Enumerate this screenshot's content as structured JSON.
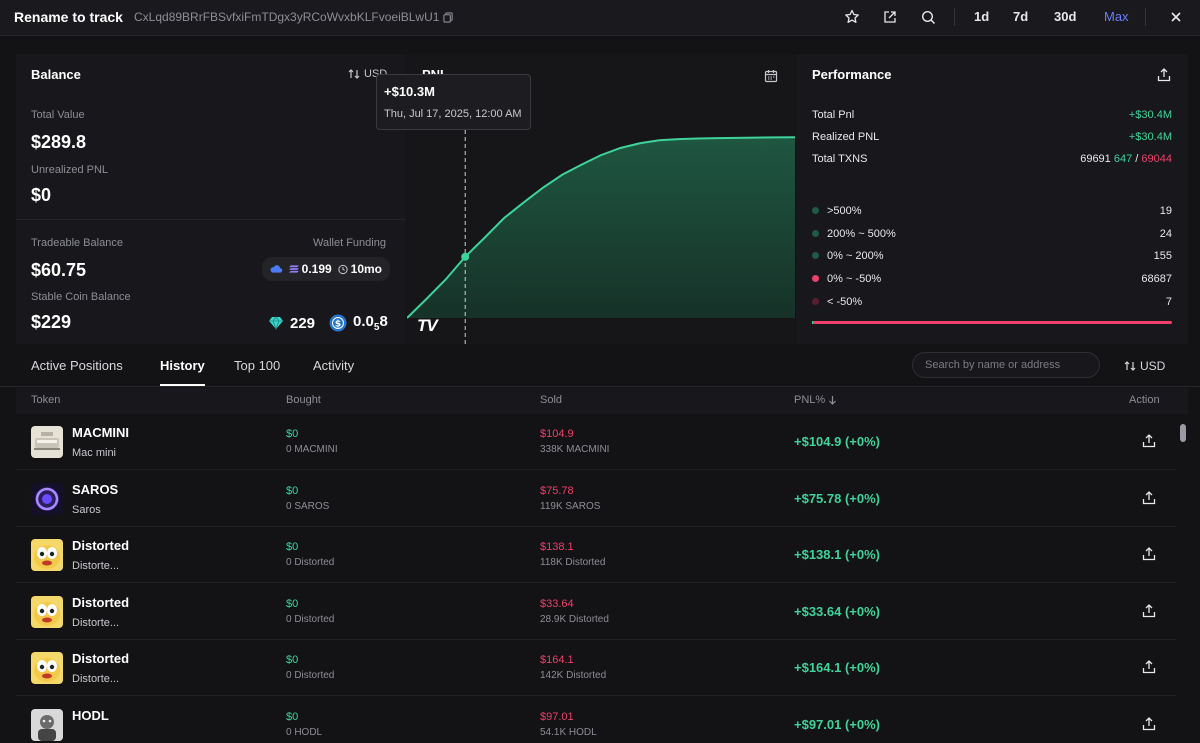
{
  "header": {
    "title": "Rename to track",
    "address": "CxLqd89BRrFBSvfxiFmTDgx3yRCoWvxbKLFvoeiBLwU1",
    "periods": [
      "1d",
      "7d",
      "30d",
      "Max"
    ],
    "active_period": "Max"
  },
  "balance": {
    "title": "Balance",
    "currency": "USD",
    "total_value_label": "Total Value",
    "total_value": "$289.8",
    "unrealized_label": "Unrealized PNL",
    "unrealized": "$0",
    "tradeable_label": "Tradeable Balance",
    "tradeable": "$60.75",
    "wallet_funding_label": "Wallet Funding",
    "wallet_funding_amount": "0.199",
    "wallet_funding_age": "10mo",
    "stable_label": "Stable Coin Balance",
    "stable": "$229",
    "stable_token_a": "229",
    "stable_token_b_main": "0.0",
    "stable_token_b_sub": "5",
    "stable_token_b_tail": "8"
  },
  "pnl_chart": {
    "title": "PNL",
    "tooltip_value": "+$10.3M",
    "tooltip_date": "Thu, Jul 17, 2025, 12:00 AM",
    "watermark": "TV",
    "line_color": "#3ed39a"
  },
  "chart_data": {
    "type": "area",
    "title": "PNL",
    "xlabel": "",
    "ylabel": "",
    "x": [
      0,
      5,
      10,
      15,
      20,
      25,
      30,
      35,
      40,
      45,
      50,
      55,
      60,
      65,
      70,
      75,
      80,
      85,
      90,
      95,
      100
    ],
    "values": [
      0.0,
      3.2,
      6.5,
      10.3,
      13.5,
      16.8,
      19.4,
      21.9,
      24.1,
      25.8,
      27.4,
      28.6,
      29.4,
      29.9,
      30.1,
      30.2,
      30.25,
      30.3,
      30.35,
      30.38,
      30.4
    ],
    "ylim": [
      0,
      36
    ],
    "highlight_index": 3,
    "unit": "$M"
  },
  "performance": {
    "title": "Performance",
    "total_pnl_label": "Total Pnl",
    "total_pnl": "+$30.4M",
    "realized_label": "Realized PNL",
    "realized": "+$30.4M",
    "txns_label": "Total TXNS",
    "txns_total": "69691",
    "txns_buy": "647",
    "txns_sep": "/",
    "txns_sell": "69044",
    "buckets": [
      {
        "label": ">500%",
        "count": "19",
        "color": "#1f5a43"
      },
      {
        "label": "200% ~ 500%",
        "count": "24",
        "color": "#1f5a43"
      },
      {
        "label": "0% ~ 200%",
        "count": "155",
        "color": "#1f5a43"
      },
      {
        "label": "0% ~ -50%",
        "count": "68687",
        "color": "#ef3f6b"
      },
      {
        "label": "< -50%",
        "count": "7",
        "color": "#5a1f2e"
      }
    ],
    "distribution_fraction_positive": 0.003
  },
  "tabs": {
    "items": [
      "Active Positions",
      "History",
      "Top 100",
      "Activity"
    ],
    "active": "History",
    "search_placeholder": "Search by name or address",
    "currency": "USD"
  },
  "table": {
    "headers": {
      "token": "Token",
      "bought": "Bought",
      "sold": "Sold",
      "pnl": "PNL%",
      "action": "Action"
    },
    "rows": [
      {
        "name": "MACMINI",
        "sub": "Mac mini",
        "bought": "$0",
        "bought_sub": "0 MACMINI",
        "sold": "$104.9",
        "sold_sub": "338K MACMINI",
        "pnl": "+$104.9 (+0%)",
        "avatar": "macmini"
      },
      {
        "name": "SAROS",
        "sub": "Saros",
        "bought": "$0",
        "bought_sub": "0 SAROS",
        "sold": "$75.78",
        "sold_sub": "119K SAROS",
        "pnl": "+$75.78 (+0%)",
        "avatar": "saros"
      },
      {
        "name": "Distorted",
        "sub": "Distorte...",
        "bought": "$0",
        "bought_sub": "0 Distorted",
        "sold": "$138.1",
        "sold_sub": "118K Distorted",
        "pnl": "+$138.1 (+0%)",
        "avatar": "face"
      },
      {
        "name": "Distorted",
        "sub": "Distorte...",
        "bought": "$0",
        "bought_sub": "0 Distorted",
        "sold": "$33.64",
        "sold_sub": "28.9K Distorted",
        "pnl": "+$33.64 (+0%)",
        "avatar": "face"
      },
      {
        "name": "Distorted",
        "sub": "Distorte...",
        "bought": "$0",
        "bought_sub": "0 Distorted",
        "sold": "$164.1",
        "sold_sub": "142K Distorted",
        "pnl": "+$164.1 (+0%)",
        "avatar": "face"
      },
      {
        "name": "HODL",
        "sub": "",
        "bought": "$0",
        "bought_sub": "0 HODL",
        "sold": "$97.01",
        "sold_sub": "54.1K HODL",
        "pnl": "+$97.01 (+0%)",
        "avatar": "hodl"
      }
    ]
  }
}
